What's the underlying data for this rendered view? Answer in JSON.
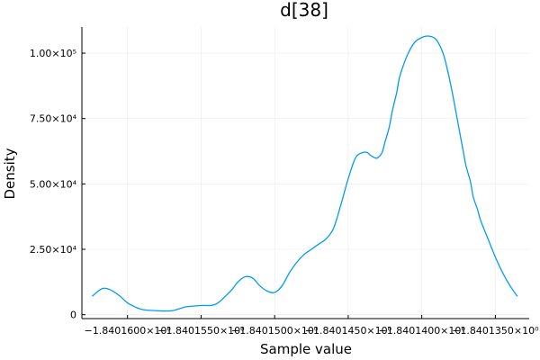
{
  "chart_data": {
    "type": "line",
    "title": "d[38]",
    "xlabel": "Sample value",
    "ylabel": "Density",
    "grid": true,
    "legend": "none",
    "colors": {
      "series": "#009AFA",
      "axis": "#000000",
      "grid": "#ebebeb",
      "background": "#ffffff"
    },
    "xlim": [
      -1.8401631,
      -1.8401327
    ],
    "ylim": [
      -1500,
      110000
    ],
    "x_ticks": [
      {
        "value": -1.84016,
        "label": "−1.8401600×10⁰"
      },
      {
        "value": -1.840155,
        "label": "−1.8401550×10⁰"
      },
      {
        "value": -1.84015,
        "label": "−1.8401500×10⁰"
      },
      {
        "value": -1.840145,
        "label": "−1.8401450×10⁰"
      },
      {
        "value": -1.84014,
        "label": "−1.8401400×10⁰"
      },
      {
        "value": -1.840135,
        "label": "−1.8401350×10⁰"
      }
    ],
    "y_ticks": [
      {
        "value": 0,
        "label": "0"
      },
      {
        "value": 25000,
        "label": "2.50×10⁴"
      },
      {
        "value": 50000,
        "label": "5.00×10⁴"
      },
      {
        "value": 75000,
        "label": "7.50×10⁴"
      },
      {
        "value": 100000,
        "label": "1.00×10⁵"
      }
    ],
    "series": [
      {
        "x": [
          -1.8401624,
          -1.840162,
          -1.8401617,
          -1.8401614,
          -1.840161,
          -1.8401605,
          -1.84016,
          -1.8401595,
          -1.840159,
          -1.840158,
          -1.840157,
          -1.840156,
          -1.840155,
          -1.840154,
          -1.840153,
          -1.8401525,
          -1.840152,
          -1.8401515,
          -1.840151,
          -1.8401505,
          -1.84015,
          -1.8401495,
          -1.840149,
          -1.8401485,
          -1.840148,
          -1.8401475,
          -1.840147,
          -1.8401465,
          -1.840146,
          -1.8401455,
          -1.840145,
          -1.8401445,
          -1.840144,
          -1.8401437,
          -1.8401435,
          -1.8401432,
          -1.840143,
          -1.8401427,
          -1.8401425,
          -1.8401422,
          -1.840142,
          -1.8401417,
          -1.8401415,
          -1.840141,
          -1.8401405,
          -1.84014,
          -1.8401395,
          -1.840139,
          -1.8401385,
          -1.840138,
          -1.8401375,
          -1.8401372,
          -1.840137,
          -1.8401367,
          -1.8401365,
          -1.8401362,
          -1.840136,
          -1.8401355,
          -1.840135,
          -1.8401345,
          -1.840134,
          -1.8401335
        ],
        "y": [
          7000,
          9000,
          10000,
          10000,
          9000,
          7000,
          4500,
          3000,
          2000,
          1500,
          1500,
          3000,
          3500,
          4000,
          9000,
          12500,
          14500,
          14000,
          11000,
          9000,
          8500,
          11000,
          16000,
          20000,
          23000,
          25000,
          27000,
          29000,
          33000,
          42000,
          52000,
          60000,
          62000,
          62000,
          61000,
          60000,
          60000,
          62000,
          66000,
          72000,
          78000,
          85000,
          91000,
          99000,
          104000,
          106000,
          106500,
          105000,
          99000,
          87000,
          72000,
          63000,
          57000,
          51000,
          45000,
          40000,
          36000,
          29000,
          22000,
          16000,
          11000,
          7000
        ]
      }
    ]
  }
}
